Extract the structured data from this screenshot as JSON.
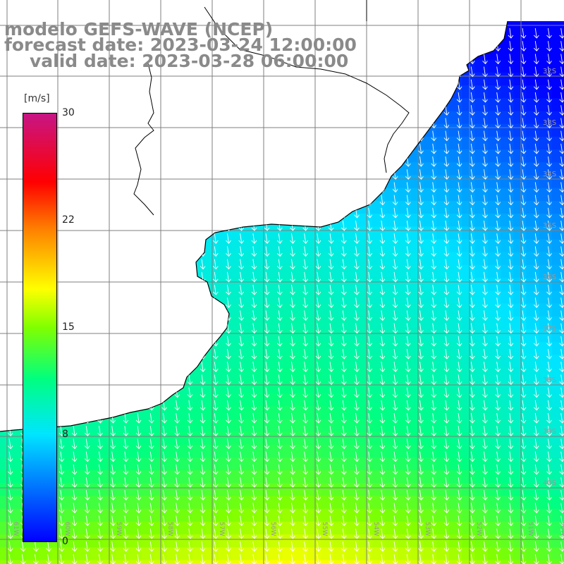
{
  "titles": {
    "model": "modelo GEFS-WAVE (NCEP)",
    "forecast": "forecast date: 2023-03-24 12:00:00",
    "valid": "valid date: 2023-03-28 06:00:00"
  },
  "colorbar": {
    "unit": "[m/s]",
    "ticks": [
      "0",
      "8",
      "15",
      "22",
      "30"
    ],
    "range": [
      0,
      30
    ]
  },
  "map": {
    "lon_range": [
      -61.5,
      -49.5
    ],
    "lat_range": [
      -42.5,
      -31.0
    ],
    "lat_labels": [
      "32S",
      "33S",
      "34S",
      "35S",
      "36S",
      "37S",
      "38S",
      "39S",
      "40S"
    ],
    "lon_labels": [
      "61W",
      "60W",
      "59W",
      "58W",
      "57W",
      "56W",
      "55W",
      "54W",
      "53W",
      "52W",
      "51W",
      "50W"
    ],
    "field": "wind speed",
    "units": "m/s",
    "arrow_direction": "from north, pointing south",
    "colors": {
      "land": "#ffffff",
      "grid": "#7f7f7f",
      "coast": "#000000",
      "arrows": "#ffffff",
      "title_text": "#8a8a8a"
    }
  }
}
